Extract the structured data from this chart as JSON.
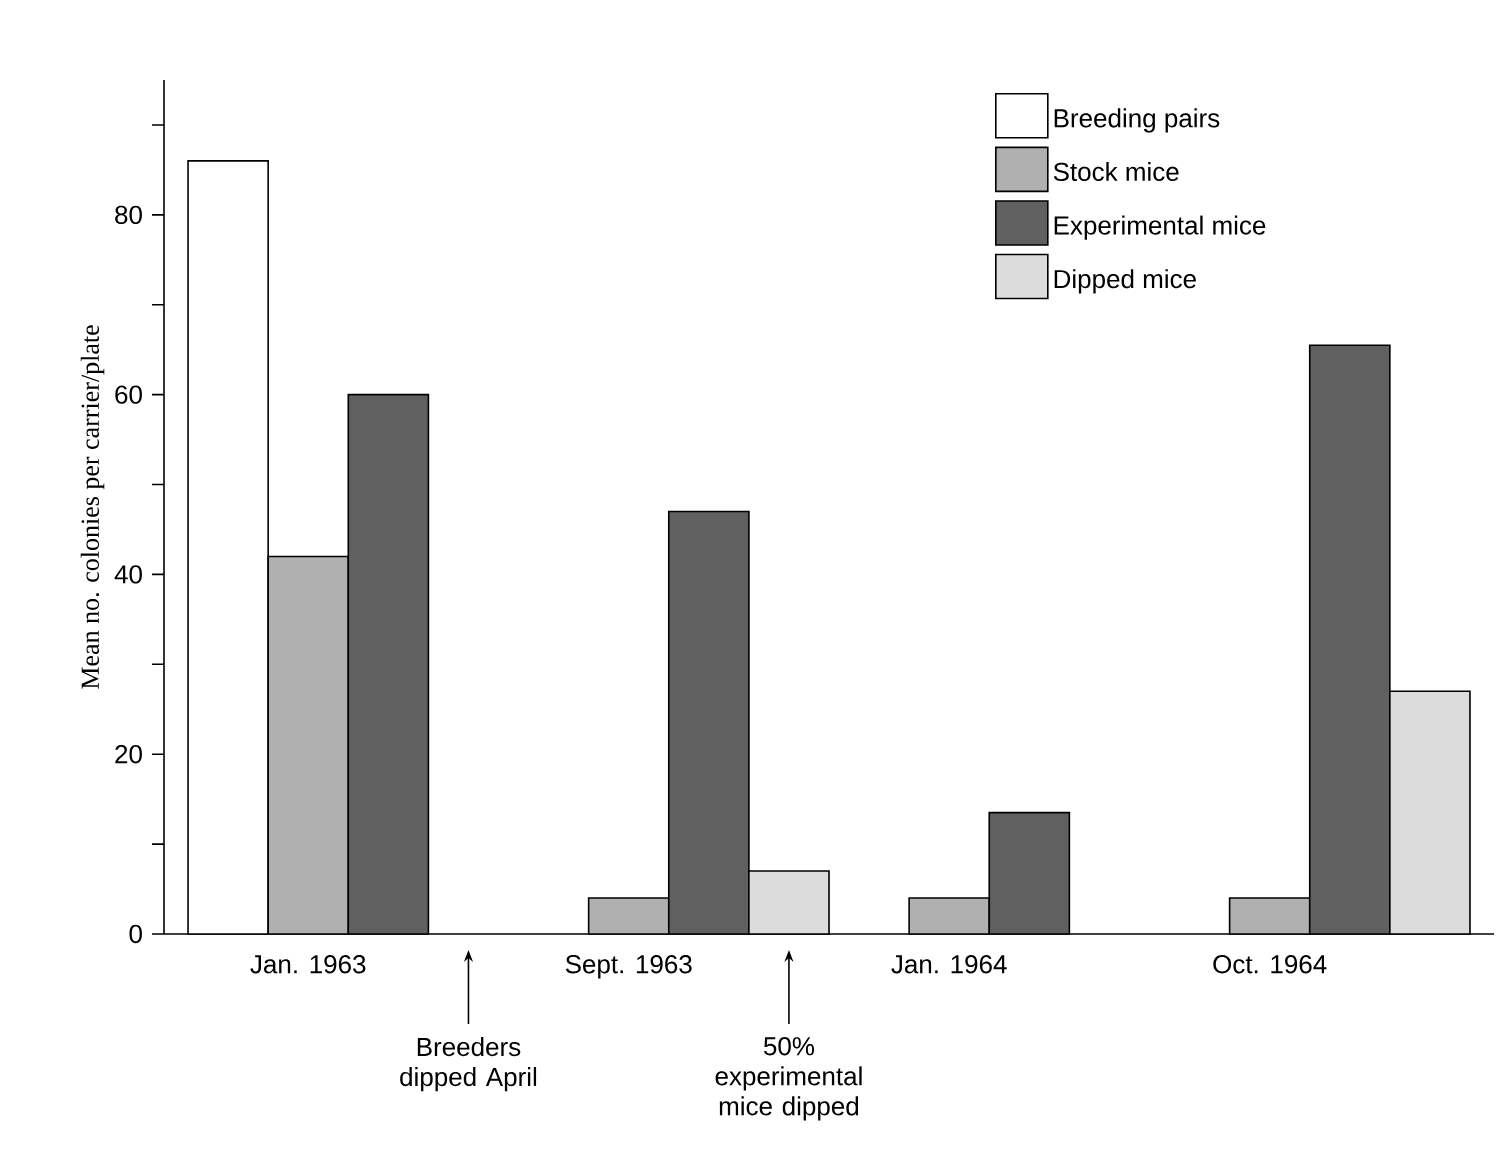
{
  "chart_data": {
    "type": "bar",
    "ylabel": "Mean no. colonies per carrier/plate",
    "categories": [
      "Jan. 1963",
      "Sept. 1963",
      "Jan. 1964",
      "Oct. 1964"
    ],
    "series": [
      {
        "name": "Breeding pairs",
        "color": "#ffffff",
        "values": [
          86,
          null,
          null,
          null
        ]
      },
      {
        "name": "Stock mice",
        "color": "#b0b0b0",
        "values": [
          42,
          4,
          4,
          4
        ]
      },
      {
        "name": "Experimental mice",
        "color": "#606060",
        "values": [
          60,
          47,
          13.5,
          65.5
        ]
      },
      {
        "name": "Dipped mice",
        "color": "#dcdcdc",
        "values": [
          null,
          7,
          null,
          27
        ]
      }
    ],
    "ylim": [
      0,
      95
    ],
    "yticks": [
      0,
      {
        "value": 10,
        "label": null
      },
      20,
      {
        "value": 30,
        "label": null
      },
      40,
      {
        "value": 50,
        "label": null
      },
      60,
      {
        "value": 70,
        "label": null
      },
      80,
      {
        "value": 90,
        "label": null
      }
    ],
    "legend": "top right",
    "annotations": [
      "Breeders dipped April",
      "50% experimental mice dipped"
    ]
  }
}
